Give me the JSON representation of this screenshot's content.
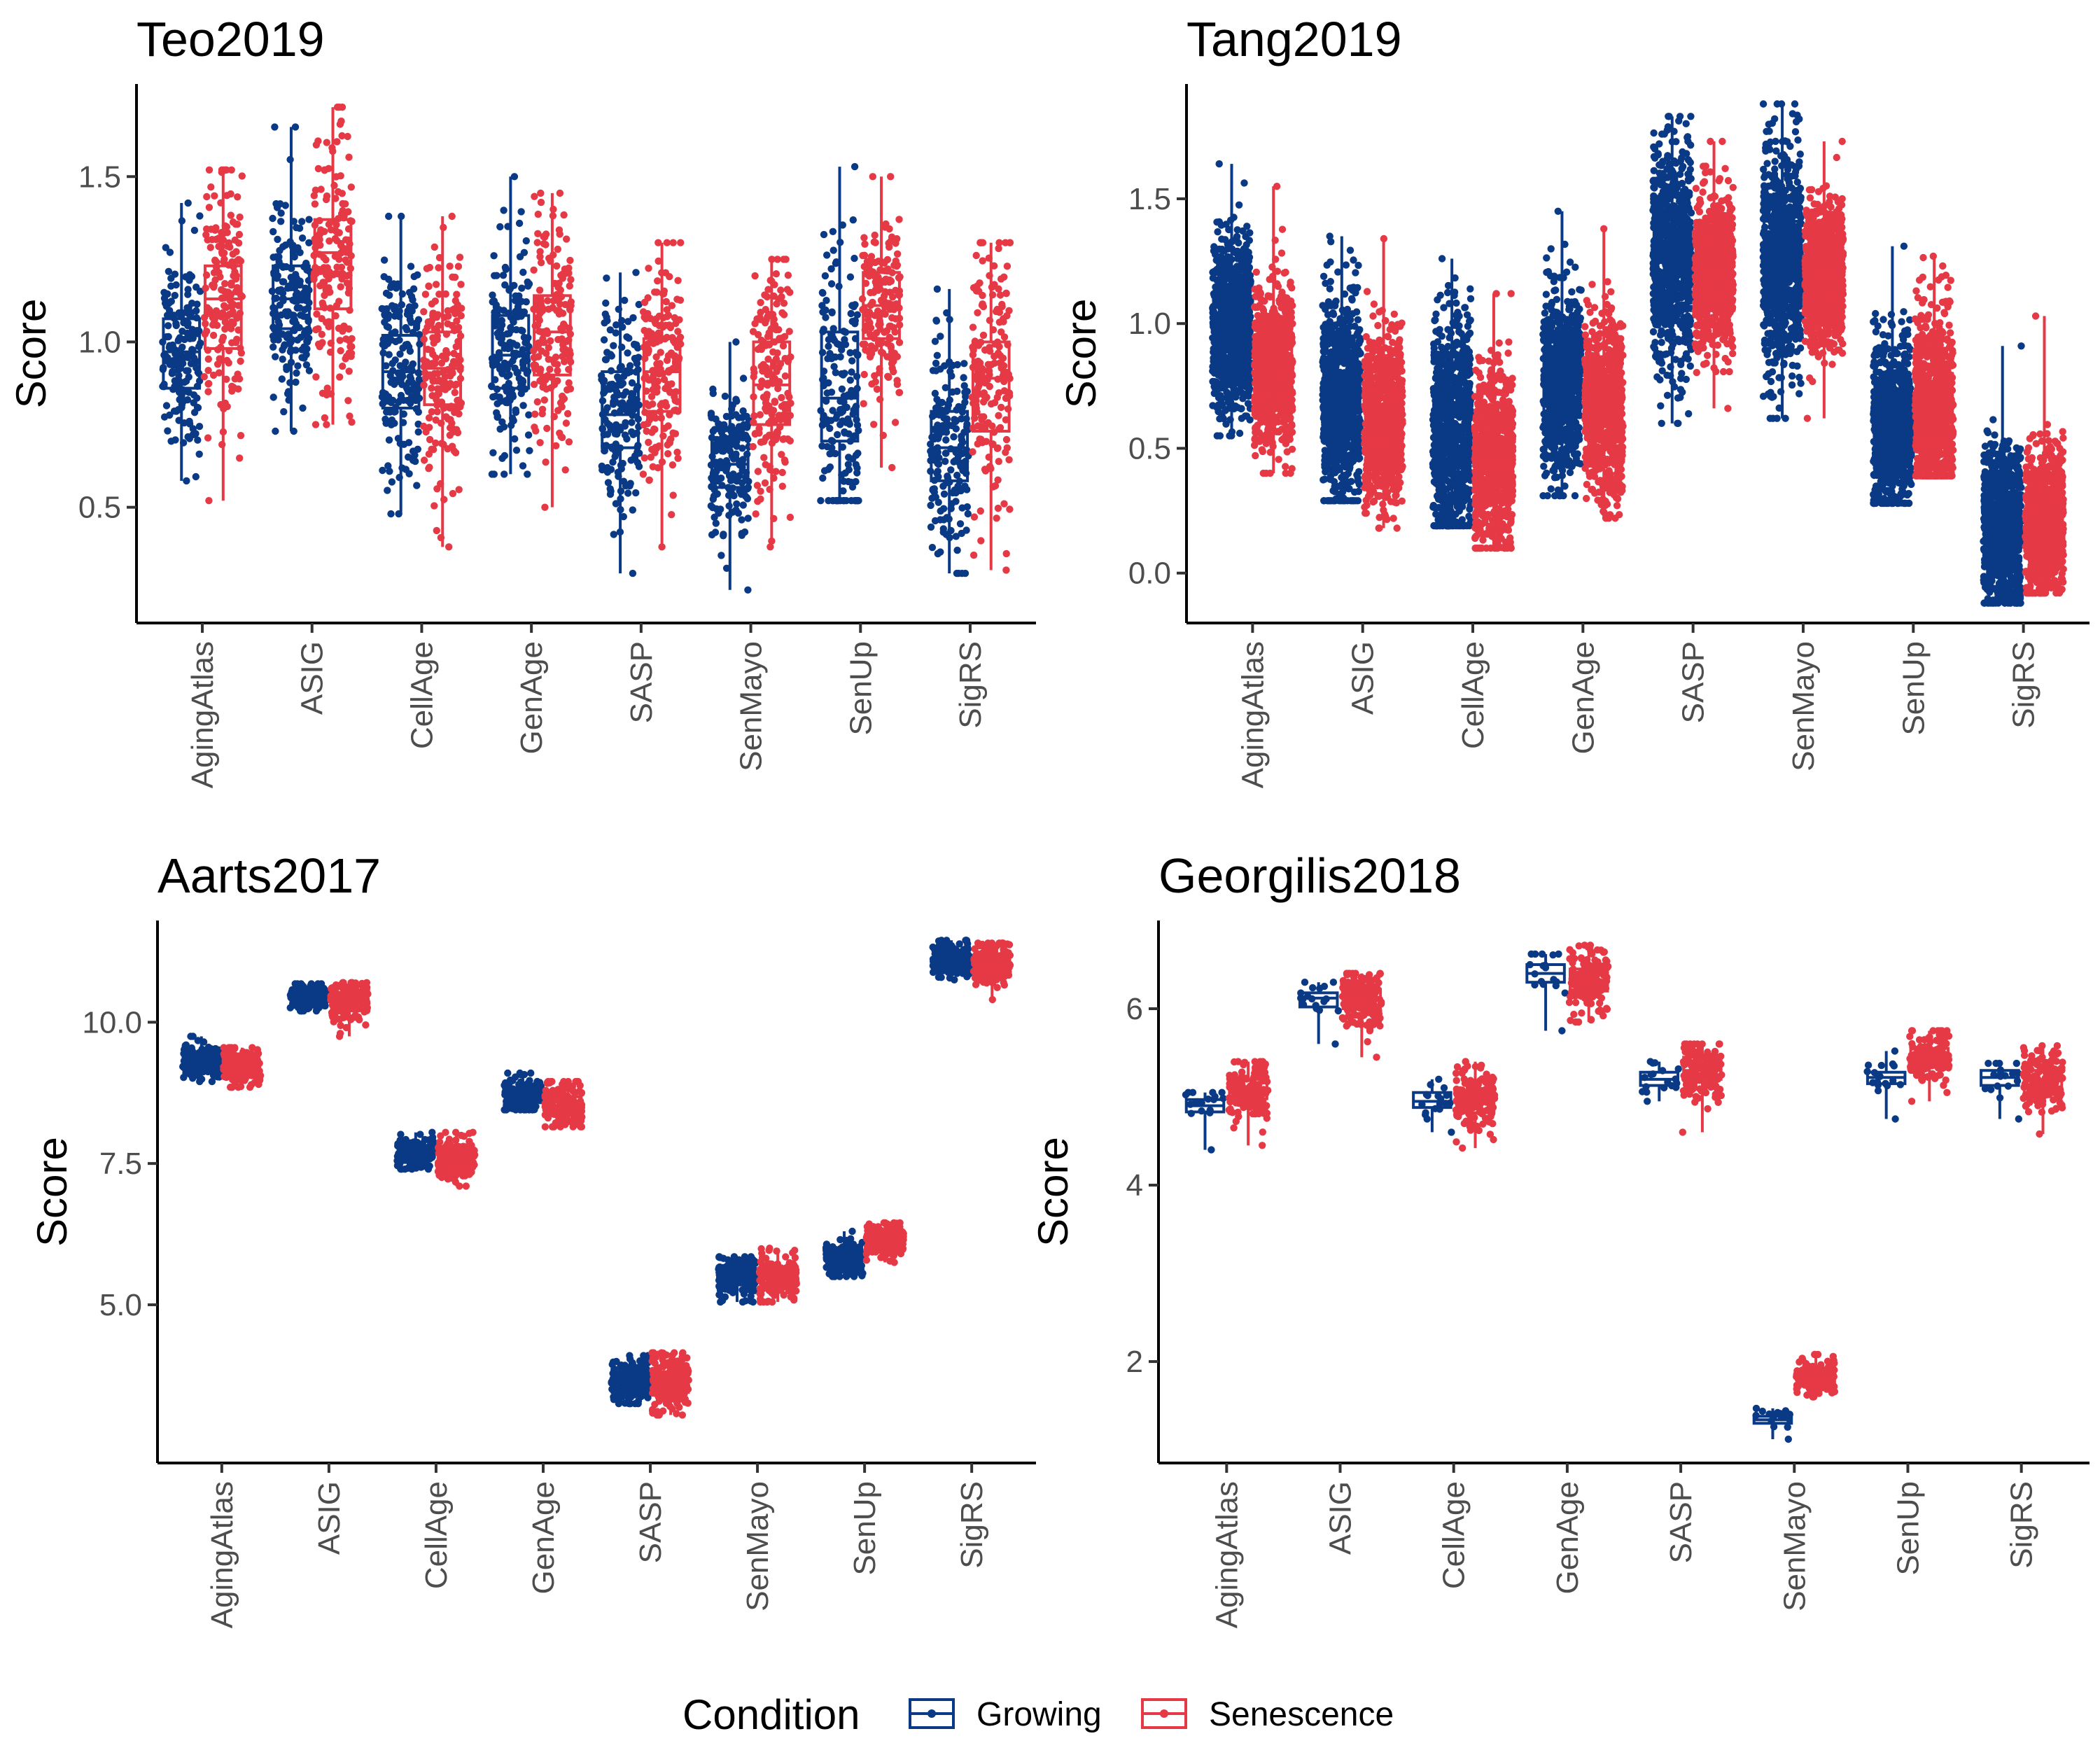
{
  "chart_data": [
    {
      "type": "boxplot",
      "title": "Teo2019",
      "ylabel": "Score",
      "ylim": [
        0.15,
        1.78
      ],
      "yticks": [
        0.5,
        1.0,
        1.5
      ],
      "ytick_labels": [
        "0.5",
        "1.0",
        "1.5"
      ],
      "categories": [
        "AgingAtlas",
        "ASIG",
        "CellAge",
        "GenAge",
        "SASP",
        "SenMayo",
        "SenUp",
        "SigRS"
      ],
      "series": [
        {
          "name": "Growing",
          "n": 180,
          "boxes": [
            {
              "min": 0.58,
              "q1": 0.86,
              "median": 0.97,
              "q3": 1.07,
              "max": 1.42
            },
            {
              "min": 0.73,
              "q1": 1.04,
              "median": 1.13,
              "q3": 1.23,
              "max": 1.65
            },
            {
              "min": 0.48,
              "q1": 0.8,
              "median": 0.91,
              "q3": 1.02,
              "max": 1.38
            },
            {
              "min": 0.6,
              "q1": 0.86,
              "median": 0.96,
              "q3": 1.08,
              "max": 1.5
            },
            {
              "min": 0.3,
              "q1": 0.68,
              "median": 0.78,
              "q3": 0.91,
              "max": 1.21
            },
            {
              "min": 0.25,
              "q1": 0.56,
              "median": 0.63,
              "q3": 0.71,
              "max": 1.0
            },
            {
              "min": 0.52,
              "q1": 0.7,
              "median": 0.83,
              "q3": 1.03,
              "max": 1.53
            },
            {
              "min": 0.3,
              "q1": 0.58,
              "median": 0.68,
              "q3": 0.79,
              "max": 1.16
            }
          ]
        },
        {
          "name": "Senescence",
          "n": 180,
          "boxes": [
            {
              "min": 0.52,
              "q1": 0.98,
              "median": 1.13,
              "q3": 1.23,
              "max": 1.52
            },
            {
              "min": 0.75,
              "q1": 1.1,
              "median": 1.27,
              "q3": 1.37,
              "max": 1.71
            },
            {
              "min": 0.38,
              "q1": 0.81,
              "median": 0.92,
              "q3": 1.03,
              "max": 1.38
            },
            {
              "min": 0.5,
              "q1": 0.9,
              "median": 1.03,
              "q3": 1.14,
              "max": 1.45
            },
            {
              "min": 0.38,
              "q1": 0.79,
              "median": 0.91,
              "q3": 1.01,
              "max": 1.3
            },
            {
              "min": 0.38,
              "q1": 0.75,
              "median": 0.87,
              "q3": 1.0,
              "max": 1.25
            },
            {
              "min": 0.62,
              "q1": 1.01,
              "median": 1.11,
              "q3": 1.21,
              "max": 1.5
            },
            {
              "min": 0.31,
              "q1": 0.73,
              "median": 0.89,
              "q3": 1.0,
              "max": 1.3
            }
          ]
        }
      ]
    },
    {
      "type": "boxplot",
      "title": "Tang2019",
      "ylabel": "Score",
      "ylim": [
        -0.2,
        1.96
      ],
      "yticks": [
        0.0,
        0.5,
        1.0,
        1.5
      ],
      "ytick_labels": [
        "0.0",
        "0.5",
        "1.0",
        "1.5"
      ],
      "categories": [
        "AgingAtlas",
        "ASIG",
        "CellAge",
        "GenAge",
        "SASP",
        "SenMayo",
        "SenUp",
        "SigRS"
      ],
      "series": [
        {
          "name": "Growing",
          "n": 800,
          "boxes": [
            {
              "min": 0.55,
              "q1": 0.89,
              "median": 1.0,
              "q3": 1.12,
              "max": 1.64
            },
            {
              "min": 0.29,
              "q1": 0.57,
              "median": 0.69,
              "q3": 0.84,
              "max": 1.35
            },
            {
              "min": 0.19,
              "q1": 0.42,
              "median": 0.57,
              "q3": 0.73,
              "max": 1.26
            },
            {
              "min": 0.31,
              "q1": 0.65,
              "median": 0.76,
              "q3": 0.89,
              "max": 1.45
            },
            {
              "min": 0.6,
              "q1": 1.1,
              "median": 1.26,
              "q3": 1.4,
              "max": 1.83
            },
            {
              "min": 0.62,
              "q1": 1.1,
              "median": 1.25,
              "q3": 1.41,
              "max": 1.88
            },
            {
              "min": 0.28,
              "q1": 0.49,
              "median": 0.59,
              "q3": 0.71,
              "max": 1.31
            },
            {
              "min": -0.12,
              "q1": 0.09,
              "median": 0.18,
              "q3": 0.3,
              "max": 0.91
            }
          ]
        },
        {
          "name": "Senescence",
          "n": 800,
          "boxes": [
            {
              "min": 0.4,
              "q1": 0.72,
              "median": 0.82,
              "q3": 0.93,
              "max": 1.55
            },
            {
              "min": 0.18,
              "q1": 0.51,
              "median": 0.61,
              "q3": 0.73,
              "max": 1.34
            },
            {
              "min": 0.1,
              "q1": 0.38,
              "median": 0.45,
              "q3": 0.61,
              "max": 1.12
            },
            {
              "min": 0.22,
              "q1": 0.56,
              "median": 0.67,
              "q3": 0.79,
              "max": 1.38
            },
            {
              "min": 0.66,
              "q1": 1.1,
              "median": 1.2,
              "q3": 1.3,
              "max": 1.73
            },
            {
              "min": 0.62,
              "q1": 1.1,
              "median": 1.2,
              "q3": 1.29,
              "max": 1.73
            },
            {
              "min": 0.39,
              "q1": 0.54,
              "median": 0.65,
              "q3": 0.8,
              "max": 1.27
            },
            {
              "min": -0.08,
              "q1": 0.12,
              "median": 0.2,
              "q3": 0.32,
              "max": 1.03
            }
          ]
        }
      ]
    },
    {
      "type": "boxplot",
      "title": "Aarts2017",
      "ylabel": "Score",
      "ylim": [
        2.2,
        11.8
      ],
      "yticks": [
        5.0,
        7.5,
        10.0
      ],
      "ytick_labels": [
        "5.0",
        "7.5",
        "10.0"
      ],
      "categories": [
        "AgingAtlas",
        "ASIG",
        "CellAge",
        "GenAge",
        "SASP",
        "SenMayo",
        "SenUp",
        "SigRS"
      ],
      "series": [
        {
          "name": "Growing",
          "n": 200,
          "boxes": [
            {
              "min": 8.95,
              "q1": 9.2,
              "median": 9.3,
              "q3": 9.4,
              "max": 9.75
            },
            {
              "min": 10.2,
              "q1": 10.35,
              "median": 10.42,
              "q3": 10.5,
              "max": 10.68
            },
            {
              "min": 7.4,
              "q1": 7.6,
              "median": 7.68,
              "q3": 7.78,
              "max": 8.05
            },
            {
              "min": 8.45,
              "q1": 8.62,
              "median": 8.72,
              "q3": 8.82,
              "max": 9.1
            },
            {
              "min": 3.25,
              "q1": 3.55,
              "median": 3.65,
              "q3": 3.8,
              "max": 4.1
            },
            {
              "min": 5.05,
              "q1": 5.35,
              "median": 5.47,
              "q3": 5.6,
              "max": 5.85
            },
            {
              "min": 5.5,
              "q1": 5.7,
              "median": 5.8,
              "q3": 5.9,
              "max": 6.3
            },
            {
              "min": 10.75,
              "q1": 10.98,
              "median": 11.1,
              "q3": 11.2,
              "max": 11.45
            }
          ]
        },
        {
          "name": "Senescence",
          "n": 200,
          "boxes": [
            {
              "min": 8.85,
              "q1": 9.1,
              "median": 9.2,
              "q3": 9.3,
              "max": 9.55
            },
            {
              "min": 9.75,
              "q1": 10.25,
              "median": 10.38,
              "q3": 10.5,
              "max": 10.7
            },
            {
              "min": 7.1,
              "q1": 7.45,
              "median": 7.58,
              "q3": 7.72,
              "max": 8.05
            },
            {
              "min": 8.15,
              "q1": 8.4,
              "median": 8.52,
              "q3": 8.68,
              "max": 8.95
            },
            {
              "min": 3.05,
              "q1": 3.45,
              "median": 3.62,
              "q3": 3.8,
              "max": 4.15
            },
            {
              "min": 5.05,
              "q1": 5.38,
              "median": 5.5,
              "q3": 5.62,
              "max": 6.0
            },
            {
              "min": 5.75,
              "q1": 6.05,
              "median": 6.15,
              "q3": 6.25,
              "max": 6.45
            },
            {
              "min": 10.4,
              "q1": 10.92,
              "median": 11.05,
              "q3": 11.15,
              "max": 11.4
            }
          ]
        }
      ]
    },
    {
      "type": "boxplot",
      "title": "Georgilis2018",
      "ylabel": "Score",
      "ylim": [
        0.85,
        7.0
      ],
      "yticks": [
        2,
        4,
        6
      ],
      "ytick_labels": [
        "2",
        "4",
        "6"
      ],
      "categories": [
        "AgingAtlas",
        "ASIG",
        "CellAge",
        "GenAge",
        "SASP",
        "SenMayo",
        "SenUp",
        "SigRS"
      ],
      "series": [
        {
          "name": "Growing",
          "n": 18,
          "boxes": [
            {
              "min": 4.4,
              "q1": 4.83,
              "median": 4.9,
              "q3": 4.97,
              "max": 5.05
            },
            {
              "min": 5.6,
              "q1": 6.02,
              "median": 6.12,
              "q3": 6.18,
              "max": 6.3
            },
            {
              "min": 4.6,
              "q1": 4.88,
              "median": 4.95,
              "q3": 5.05,
              "max": 5.2
            },
            {
              "min": 5.75,
              "q1": 6.3,
              "median": 6.4,
              "q3": 6.5,
              "max": 6.62
            },
            {
              "min": 4.95,
              "q1": 5.13,
              "median": 5.2,
              "q3": 5.28,
              "max": 5.4
            },
            {
              "min": 1.12,
              "q1": 1.3,
              "median": 1.34,
              "q3": 1.38,
              "max": 1.47
            },
            {
              "min": 4.75,
              "q1": 5.15,
              "median": 5.22,
              "q3": 5.28,
              "max": 5.52
            },
            {
              "min": 4.75,
              "q1": 5.13,
              "median": 5.22,
              "q3": 5.3,
              "max": 5.38
            }
          ]
        },
        {
          "name": "Senescence",
          "n": 150,
          "boxes": [
            {
              "min": 4.45,
              "q1": 4.98,
              "median": 5.08,
              "q3": 5.2,
              "max": 5.4
            },
            {
              "min": 5.45,
              "q1": 6.0,
              "median": 6.1,
              "q3": 6.22,
              "max": 6.4
            },
            {
              "min": 4.42,
              "q1": 4.82,
              "median": 4.95,
              "q3": 5.07,
              "max": 5.4
            },
            {
              "min": 5.85,
              "q1": 6.2,
              "median": 6.32,
              "q3": 6.45,
              "max": 6.72
            },
            {
              "min": 4.6,
              "q1": 5.2,
              "median": 5.3,
              "q3": 5.45,
              "max": 5.6
            },
            {
              "min": 1.6,
              "q1": 1.75,
              "median": 1.82,
              "q3": 1.9,
              "max": 2.08
            },
            {
              "min": 4.95,
              "q1": 5.35,
              "median": 5.45,
              "q3": 5.55,
              "max": 5.75
            },
            {
              "min": 4.58,
              "q1": 5.05,
              "median": 5.18,
              "q3": 5.3,
              "max": 5.58
            }
          ]
        }
      ]
    }
  ],
  "legend": {
    "title": "Condition",
    "placement": "bottom",
    "items": [
      {
        "label": "Growing",
        "color": "#0a3a85"
      },
      {
        "label": "Senescence",
        "color": "#e63946"
      }
    ]
  },
  "colors": {
    "Growing": "#0a3a85",
    "Senescence": "#e63946",
    "axis": "#000000",
    "tick_label": "#4d4d4d"
  }
}
